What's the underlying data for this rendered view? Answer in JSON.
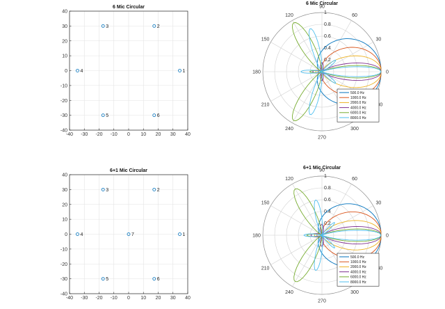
{
  "colors": {
    "marker": "#0072BD",
    "grid": "#e3e3e3",
    "polar_grid": "#d0d0d0",
    "axis": "#262626"
  },
  "chart_data": [
    {
      "id": "mic6",
      "type": "scatter",
      "title": "6 Mic Circular",
      "xlim": [
        -40,
        40
      ],
      "ylim": [
        -40,
        40
      ],
      "xticks": [
        -40,
        -30,
        -20,
        -10,
        0,
        10,
        20,
        30,
        40
      ],
      "yticks": [
        -40,
        -30,
        -20,
        -10,
        0,
        10,
        20,
        30,
        40
      ],
      "grid": true,
      "points": [
        {
          "x": 34.6,
          "y": 0,
          "label": "1"
        },
        {
          "x": 17.3,
          "y": 30,
          "label": "2"
        },
        {
          "x": -17.3,
          "y": 30,
          "label": "3"
        },
        {
          "x": -34.6,
          "y": 0,
          "label": "4"
        },
        {
          "x": -17.3,
          "y": -30,
          "label": "5"
        },
        {
          "x": 17.3,
          "y": -30,
          "label": "6"
        }
      ]
    },
    {
      "id": "polar6",
      "type": "polar",
      "title": "6 Mic Circular",
      "rticks": [
        "0.2",
        "0.4",
        "0.6",
        "0.8",
        "1"
      ],
      "theta_labels": [
        "0",
        "30",
        "60",
        "90",
        "120",
        "150",
        "180",
        "210",
        "240",
        "270",
        "300",
        "330"
      ],
      "legend_location": "bottom-right",
      "series": [
        {
          "name": "500.0 Hz",
          "color": "#0072BD",
          "lobes": [
            {
              "dir": 0,
              "amp": 1.0,
              "width": 62
            }
          ]
        },
        {
          "name": "1000.0 Hz",
          "color": "#D95319",
          "lobes": [
            {
              "dir": 0,
              "amp": 1.0,
              "width": 42
            },
            {
              "dir": 180,
              "amp": 0.06,
              "width": 30
            }
          ]
        },
        {
          "name": "2000.0 Hz",
          "color": "#EDB120",
          "lobes": [
            {
              "dir": 0,
              "amp": 1.0,
              "width": 26
            },
            {
              "dir": 180,
              "amp": 0.1,
              "width": 22
            }
          ]
        },
        {
          "name": "4000.0 Hz",
          "color": "#7E2F8E",
          "lobes": [
            {
              "dir": 0,
              "amp": 1.0,
              "width": 14
            },
            {
              "dir": 90,
              "amp": 0.15,
              "width": 14
            },
            {
              "dir": 270,
              "amp": 0.15,
              "width": 14
            },
            {
              "dir": 180,
              "amp": 0.15,
              "width": 14
            }
          ]
        },
        {
          "name": "6000.0 Hz",
          "color": "#77AC30",
          "lobes": [
            {
              "dir": 0,
              "amp": 1.0,
              "width": 10
            },
            {
              "dir": 120,
              "amp": 0.95,
              "width": 11
            },
            {
              "dir": 240,
              "amp": 0.95,
              "width": 11
            },
            {
              "dir": 180,
              "amp": 0.2,
              "width": 8
            }
          ]
        },
        {
          "name": "8000.0 Hz",
          "color": "#4DBEEE",
          "lobes": [
            {
              "dir": 0,
              "amp": 1.0,
              "width": 8
            },
            {
              "dir": 105,
              "amp": 0.75,
              "width": 8
            },
            {
              "dir": 255,
              "amp": 0.75,
              "width": 8
            },
            {
              "dir": 180,
              "amp": 0.35,
              "width": 7
            },
            {
              "dir": 40,
              "amp": 0.3,
              "width": 6
            },
            {
              "dir": 320,
              "amp": 0.3,
              "width": 6
            }
          ]
        }
      ]
    },
    {
      "id": "mic7",
      "type": "scatter",
      "title": "6+1 Mic Circular",
      "xlim": [
        -40,
        40
      ],
      "ylim": [
        -40,
        40
      ],
      "xticks": [
        -40,
        -30,
        -20,
        -10,
        0,
        10,
        20,
        30,
        40
      ],
      "yticks": [
        -40,
        -30,
        -20,
        -10,
        0,
        10,
        20,
        30,
        40
      ],
      "grid": true,
      "points": [
        {
          "x": 34.6,
          "y": 0,
          "label": "1"
        },
        {
          "x": 17.3,
          "y": 30,
          "label": "2"
        },
        {
          "x": -17.3,
          "y": 30,
          "label": "3"
        },
        {
          "x": -34.6,
          "y": 0,
          "label": "4"
        },
        {
          "x": -17.3,
          "y": -30,
          "label": "5"
        },
        {
          "x": 17.3,
          "y": -30,
          "label": "6"
        },
        {
          "x": 0,
          "y": 0,
          "label": "7"
        }
      ]
    },
    {
      "id": "polar7",
      "type": "polar",
      "title": "6+1 Mic Circular",
      "rticks": [
        "0.2",
        "0.4",
        "0.6",
        "0.8",
        "1"
      ],
      "theta_labels": [
        "0",
        "30",
        "60",
        "90",
        "120",
        "150",
        "180",
        "210",
        "240",
        "270",
        "300",
        "330"
      ],
      "legend_location": "bottom-right",
      "series": [
        {
          "name": "500.0 Hz",
          "color": "#0072BD",
          "lobes": [
            {
              "dir": 0,
              "amp": 1.0,
              "width": 58
            }
          ]
        },
        {
          "name": "1000.0 Hz",
          "color": "#D95319",
          "lobes": [
            {
              "dir": 0,
              "amp": 1.0,
              "width": 40
            },
            {
              "dir": 180,
              "amp": 0.08,
              "width": 30
            }
          ]
        },
        {
          "name": "2000.0 Hz",
          "color": "#EDB120",
          "lobes": [
            {
              "dir": 0,
              "amp": 1.0,
              "width": 24
            },
            {
              "dir": 180,
              "amp": 0.12,
              "width": 22
            }
          ]
        },
        {
          "name": "4000.0 Hz",
          "color": "#7E2F8E",
          "lobes": [
            {
              "dir": 0,
              "amp": 1.0,
              "width": 14
            },
            {
              "dir": 90,
              "amp": 0.18,
              "width": 14
            },
            {
              "dir": 270,
              "amp": 0.18,
              "width": 14
            },
            {
              "dir": 180,
              "amp": 0.18,
              "width": 14
            }
          ]
        },
        {
          "name": "6000.0 Hz",
          "color": "#77AC30",
          "lobes": [
            {
              "dir": 0,
              "amp": 1.0,
              "width": 10
            },
            {
              "dir": 120,
              "amp": 0.9,
              "width": 11
            },
            {
              "dir": 240,
              "amp": 0.9,
              "width": 11
            },
            {
              "dir": 180,
              "amp": 0.25,
              "width": 8
            }
          ]
        },
        {
          "name": "8000.0 Hz",
          "color": "#4DBEEE",
          "lobes": [
            {
              "dir": 0,
              "amp": 1.0,
              "width": 8
            },
            {
              "dir": 100,
              "amp": 0.6,
              "width": 8
            },
            {
              "dir": 260,
              "amp": 0.6,
              "width": 8
            },
            {
              "dir": 180,
              "amp": 0.3,
              "width": 7
            },
            {
              "dir": 45,
              "amp": 0.3,
              "width": 6
            },
            {
              "dir": 315,
              "amp": 0.3,
              "width": 6
            }
          ]
        }
      ]
    }
  ]
}
